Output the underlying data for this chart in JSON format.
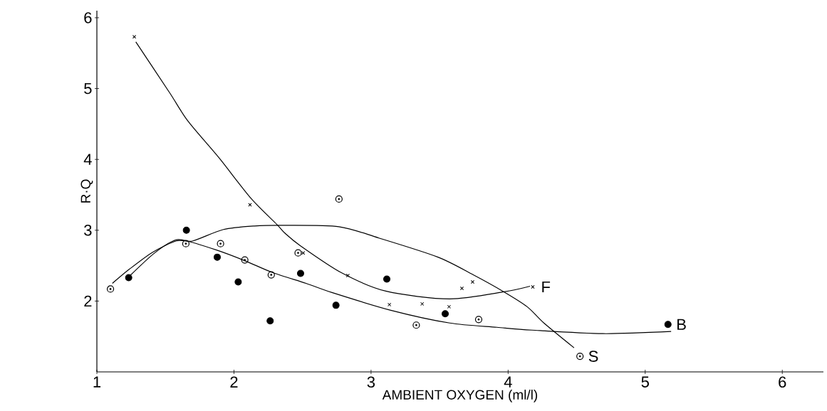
{
  "chart_data": {
    "type": "scatter",
    "xlabel": "AMBIENT OXYGEN (ml/l)",
    "ylabel": "R·Q",
    "xlim": [
      1,
      6.3
    ],
    "ylim": [
      1,
      6.1
    ],
    "xticks": [
      1,
      2,
      3,
      4,
      5,
      6
    ],
    "yticks": [
      2,
      3,
      4,
      5,
      6
    ],
    "series": [
      {
        "name": "F",
        "marker": "cross",
        "color": "#000000",
        "x": [
          1.273,
          2.117,
          2.505,
          2.831,
          3.134,
          3.373,
          3.569,
          3.663,
          3.741,
          4.18
        ],
        "values": [
          5.73,
          3.36,
          2.68,
          2.36,
          1.95,
          1.96,
          1.92,
          2.18,
          2.27,
          2.2
        ]
      },
      {
        "name": "B",
        "marker": "circle",
        "color": "#000000",
        "x": [
          1.232,
          1.653,
          1.878,
          2.031,
          2.264,
          2.486,
          2.744,
          3.115,
          3.541,
          5.166
        ],
        "values": [
          2.33,
          3.0,
          2.62,
          2.27,
          1.72,
          2.39,
          1.94,
          2.31,
          1.82,
          1.67
        ]
      },
      {
        "name": "S",
        "marker": "circle",
        "color": "#000000",
        "x": [
          1.099,
          1.649,
          1.902,
          2.079,
          2.272,
          2.468,
          2.766,
          3.33,
          3.785,
          4.524
        ],
        "values": [
          2.17,
          2.81,
          2.81,
          2.58,
          2.37,
          2.68,
          3.44,
          1.66,
          1.74,
          1.22
        ]
      },
      {
        "type": "line",
        "line_style": "solid",
        "color": "#000000",
        "x": [
          1.284,
          1.531,
          1.665,
          1.892,
          2.124,
          2.314,
          2.371,
          2.485,
          2.784,
          3.108,
          3.572,
          3.969,
          4.16
        ],
        "values": [
          5.66,
          4.94,
          4.54,
          4.02,
          3.45,
          3.08,
          2.96,
          2.78,
          2.4,
          2.14,
          2.03,
          2.13,
          2.21
        ]
      },
      {
        "type": "line",
        "line_style": "solid",
        "color": "#000000",
        "x": [
          1.237,
          1.409,
          1.546,
          1.632,
          1.873,
          2.079,
          2.285,
          2.526,
          2.715,
          3.144,
          3.574,
          3.918,
          4.175,
          4.691,
          5.189
        ],
        "values": [
          2.35,
          2.66,
          2.84,
          2.86,
          2.72,
          2.57,
          2.4,
          2.25,
          2.12,
          1.87,
          1.69,
          1.63,
          1.59,
          1.54,
          1.57
        ]
      },
      {
        "type": "line",
        "line_style": "solid",
        "color": "#000000",
        "x": [
          1.113,
          1.237,
          1.407,
          1.581,
          1.701,
          1.923,
          2.148,
          2.371,
          2.766,
          3.057,
          3.488,
          3.746,
          3.969,
          4.139,
          4.261,
          4.481
        ],
        "values": [
          2.25,
          2.45,
          2.69,
          2.85,
          2.85,
          3.01,
          3.06,
          3.07,
          3.05,
          2.89,
          2.62,
          2.37,
          2.13,
          1.92,
          1.69,
          1.34
        ]
      }
    ]
  }
}
